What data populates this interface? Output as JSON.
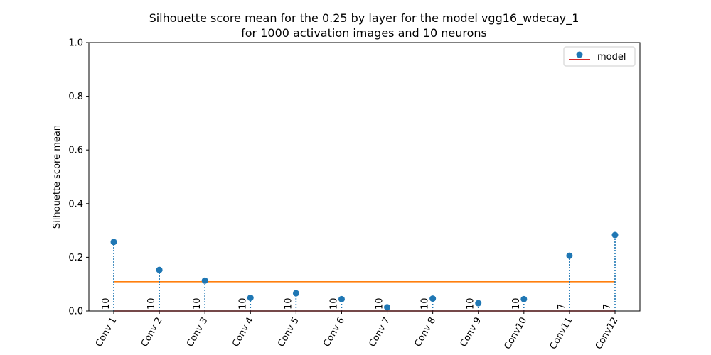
{
  "chart_data": {
    "type": "line",
    "title_line1": "Silhouette score mean for the 0.25 by layer for the model vgg16_wdecay_1",
    "title_line2": "for 1000 activation images and 10 neurons",
    "ylabel": "Silhouette score mean",
    "xlabel": "",
    "ylim": [
      0,
      1.0
    ],
    "yticks": [
      "0.0",
      "0.2",
      "0.4",
      "0.6",
      "0.8",
      "1.0"
    ],
    "ytick_values": [
      0,
      0.2,
      0.4,
      0.6,
      0.8,
      1.0
    ],
    "categories": [
      "Conv 1",
      "Conv 2",
      "Conv 3",
      "Conv 4",
      "Conv 5",
      "Conv 6",
      "Conv 7",
      "Conv 8",
      "Conv 9",
      "Conv10",
      "Conv11",
      "Conv12"
    ],
    "series": [
      {
        "name": "model",
        "values": [
          0.257,
          0.153,
          0.113,
          0.049,
          0.066,
          0.044,
          0.014,
          0.046,
          0.029,
          0.044,
          0.206,
          0.283
        ],
        "color": "#1f77b4",
        "style": "stem"
      }
    ],
    "mean_line": {
      "value": 0.109,
      "color": "#ff7f0e"
    },
    "baseline_color": "#d62728",
    "counts": [
      "10",
      "10",
      "10",
      "10",
      "10",
      "10",
      "10",
      "10",
      "10",
      "10",
      "7",
      "7"
    ],
    "legend": {
      "position": "top-right",
      "entries": [
        "model"
      ]
    },
    "grid": false
  }
}
